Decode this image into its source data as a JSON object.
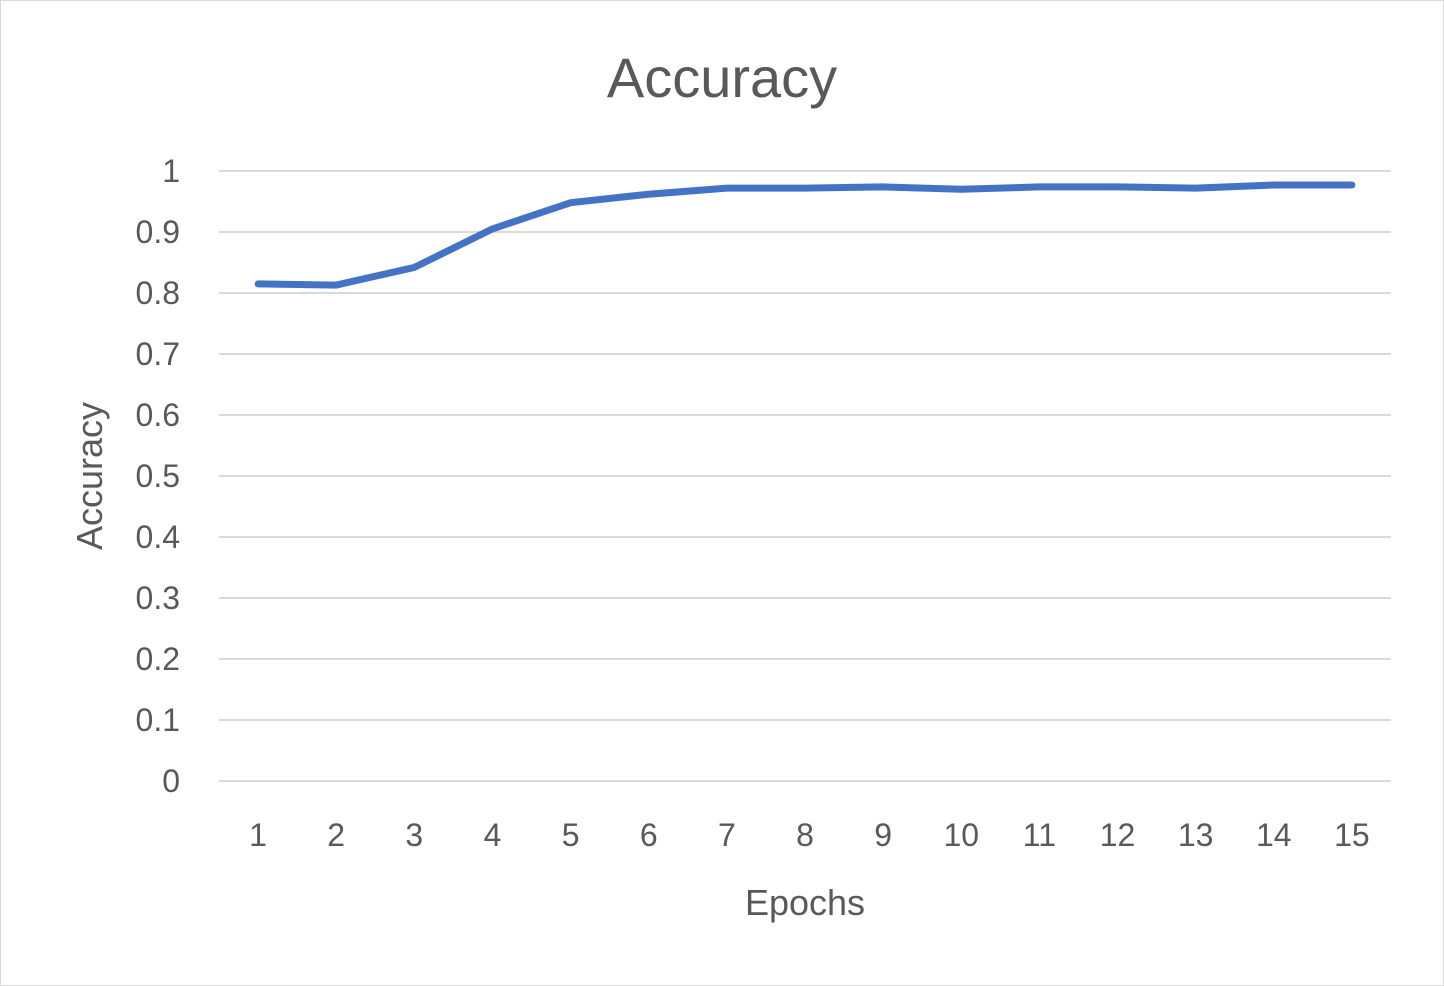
{
  "chart_data": {
    "type": "line",
    "title": "Accuracy",
    "xlabel": "Epochs",
    "ylabel": "Accuracy",
    "categories": [
      "1",
      "2",
      "3",
      "4",
      "5",
      "6",
      "7",
      "8",
      "9",
      "10",
      "11",
      "12",
      "13",
      "14",
      "15"
    ],
    "series": [
      {
        "values": [
          0.815,
          0.813,
          0.842,
          0.905,
          0.948,
          0.962,
          0.972,
          0.972,
          0.974,
          0.97,
          0.974,
          0.974,
          0.972,
          0.977,
          0.977
        ],
        "color": "#4472c4"
      }
    ],
    "ylim": [
      0,
      1
    ],
    "yticks": [
      "0",
      "0.1",
      "0.2",
      "0.3",
      "0.4",
      "0.5",
      "0.6",
      "0.7",
      "0.8",
      "0.9",
      "1"
    ],
    "grid": true,
    "legend": "none"
  }
}
